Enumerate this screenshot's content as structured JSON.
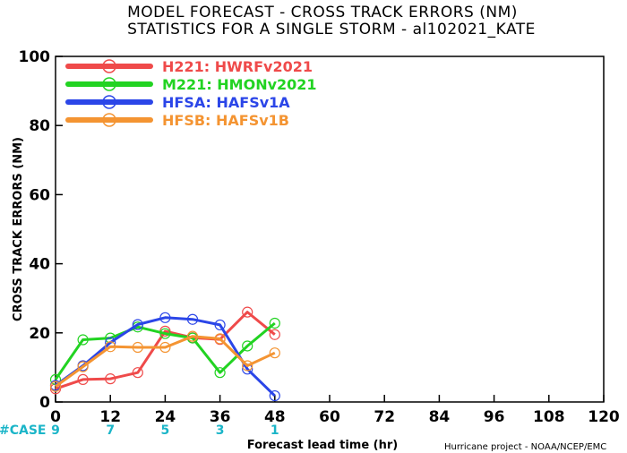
{
  "chart_data": {
    "type": "line",
    "title": "MODEL FORECAST - CROSS TRACK ERRORS (NM)",
    "subtitle": "STATISTICS FOR A SINGLE STORM - al102021_KATE",
    "xlabel": "Forecast lead time (hr)",
    "ylabel": "CROSS TRACK ERRORS (NM)",
    "xlim": [
      0,
      120
    ],
    "ylim": [
      0,
      100
    ],
    "xticks": [
      0,
      12,
      24,
      36,
      48,
      60,
      72,
      84,
      96,
      108,
      120
    ],
    "yticks": [
      0,
      20,
      40,
      60,
      80,
      100
    ],
    "grid": false,
    "legend_position": "top-left",
    "series": [
      {
        "name": "H221: HWRFv2021",
        "color": "#ef4a4a",
        "x": [
          0,
          6,
          12,
          18,
          24,
          30,
          36,
          42,
          48
        ],
        "y": [
          3.8,
          6.5,
          6.7,
          8.5,
          20.5,
          18.6,
          18.1,
          26.0,
          19.5
        ]
      },
      {
        "name": "M221: HMONv2021",
        "color": "#22d322",
        "x": [
          0,
          6,
          12,
          18,
          24,
          30,
          36,
          42,
          48
        ],
        "y": [
          6.5,
          18.0,
          18.5,
          21.7,
          19.8,
          18.5,
          8.5,
          16.2,
          22.8
        ]
      },
      {
        "name": "HFSA: HAFSv1A",
        "color": "#2b46e8",
        "x": [
          0,
          6,
          12,
          18,
          24,
          30,
          36,
          42,
          48
        ],
        "y": [
          4.8,
          10.5,
          17.2,
          22.4,
          24.4,
          23.9,
          22.3,
          9.5,
          1.8
        ]
      },
      {
        "name": "HFSB: HAFSv1B",
        "color": "#f49432",
        "x": [
          0,
          6,
          12,
          18,
          24,
          30,
          36,
          42,
          48
        ],
        "y": [
          4.5,
          10.2,
          16.0,
          15.8,
          15.8,
          19.0,
          18.3,
          10.5,
          14.2
        ]
      }
    ],
    "cases": {
      "label": "#CASE",
      "entries": [
        {
          "x": 0,
          "count": "9"
        },
        {
          "x": 12,
          "count": "7"
        },
        {
          "x": 24,
          "count": "5"
        },
        {
          "x": 36,
          "count": "3"
        },
        {
          "x": 48,
          "count": "1"
        }
      ]
    },
    "credit": "Hurricane project - NOAA/NCEP/EMC"
  }
}
